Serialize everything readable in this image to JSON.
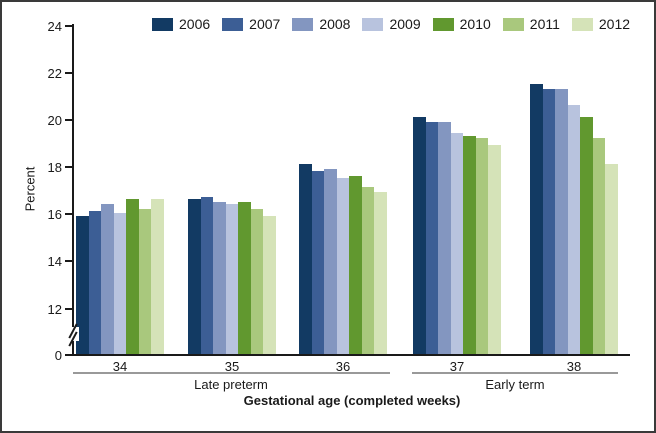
{
  "chart_data": {
    "type": "bar",
    "title": "",
    "ylabel": "Percent",
    "xlabel": "Gestational age (completed weeks)",
    "categories": [
      "34",
      "35",
      "36",
      "37",
      "38"
    ],
    "category_groups": [
      {
        "label": "Late preterm",
        "weeks": [
          "34",
          "35",
          "36"
        ]
      },
      {
        "label": "Early term",
        "weeks": [
          "37",
          "38"
        ]
      }
    ],
    "yticks": [
      0,
      12,
      14,
      16,
      18,
      20,
      22,
      24
    ],
    "ylim": [
      0,
      24
    ],
    "axis_break": "between 0 and 12",
    "grid": "off",
    "legend_position": "top",
    "series": [
      {
        "name": "2006",
        "color": "#123a63",
        "values": [
          15.9,
          16.6,
          18.1,
          20.1,
          21.5
        ]
      },
      {
        "name": "2007",
        "color": "#3c5e95",
        "values": [
          16.1,
          16.7,
          17.8,
          19.9,
          21.3
        ]
      },
      {
        "name": "2008",
        "color": "#8396c0",
        "values": [
          16.4,
          16.5,
          17.9,
          19.9,
          21.3
        ]
      },
      {
        "name": "2009",
        "color": "#b8c3de",
        "values": [
          16.0,
          16.4,
          17.5,
          19.4,
          20.6
        ]
      },
      {
        "name": "2010",
        "color": "#61982f",
        "values": [
          16.6,
          16.5,
          17.6,
          19.3,
          20.1
        ]
      },
      {
        "name": "2011",
        "color": "#a9c87d",
        "values": [
          16.2,
          16.2,
          17.1,
          19.2,
          19.2
        ]
      },
      {
        "name": "2012",
        "color": "#d5e3b8",
        "values": [
          16.6,
          15.9,
          16.9,
          18.9,
          18.1
        ]
      }
    ]
  }
}
